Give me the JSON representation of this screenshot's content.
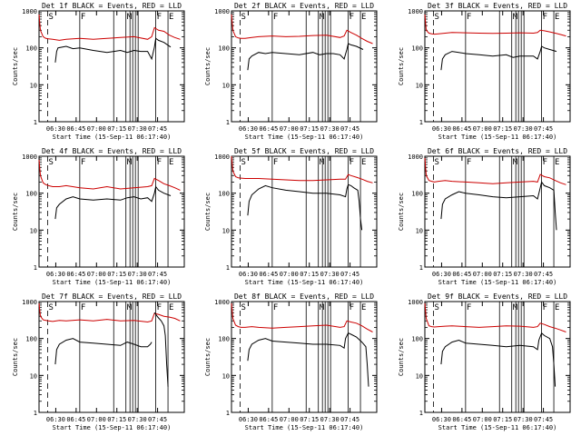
{
  "colors": {
    "events": "#000000",
    "lld": "#cc0000",
    "axis": "#000000",
    "background": "#ffffff"
  },
  "common": {
    "ylabel": "Counts/sec",
    "xlabel": "Start Time (15-Sep-11 06:17:40)",
    "x_tick_labels": [
      "06:30",
      "06:45",
      "07:00",
      "07:15",
      "07:30",
      "07:45"
    ],
    "y_tick_labels": [
      "1",
      "10",
      "100",
      "1000"
    ],
    "markers": [
      {
        "t": 6.35,
        "label": "S",
        "style": "dashed"
      },
      {
        "t": 30.0,
        "label": "F",
        "style": "solid"
      },
      {
        "t": 55.0,
        "label": "",
        "style": "solid"
      },
      {
        "t": 64.0,
        "label": "M",
        "style": "solid"
      },
      {
        "t": 67.0,
        "label": "",
        "style": "solid"
      },
      {
        "t": 69.0,
        "label": "",
        "style": "solid"
      },
      {
        "t": 71.0,
        "label": "",
        "style": "solid"
      },
      {
        "t": 73.0,
        "label": "",
        "style": "solid"
      },
      {
        "t": 86.0,
        "label": "F",
        "style": "solid"
      },
      {
        "t": 95.0,
        "label": "E",
        "style": "solid"
      }
    ]
  },
  "chart_data": [
    {
      "type": "line",
      "title": "Det 1f BLACK = Events, RED = LLD",
      "x_range_min_after_start": [
        0,
        107
      ],
      "y_log_range": [
        1,
        1000
      ],
      "series": [
        {
          "name": "Events",
          "color": "#000000",
          "x": [
            12,
            13,
            14,
            20,
            25,
            30,
            40,
            50,
            60,
            65,
            70,
            75,
            80,
            83,
            85,
            86,
            88,
            92,
            97
          ],
          "y": [
            40,
            80,
            100,
            110,
            95,
            100,
            85,
            75,
            85,
            75,
            85,
            80,
            80,
            50,
            105,
            180,
            160,
            140,
            105
          ]
        },
        {
          "name": "LLD",
          "color": "#cc0000",
          "x": [
            0,
            1,
            3,
            5,
            7,
            10,
            15,
            20,
            30,
            40,
            50,
            60,
            70,
            80,
            83,
            85,
            88,
            92,
            96,
            100,
            104
          ],
          "y": [
            800,
            300,
            200,
            180,
            175,
            170,
            160,
            170,
            180,
            170,
            180,
            190,
            200,
            170,
            200,
            350,
            300,
            280,
            220,
            190,
            170
          ]
        }
      ]
    },
    {
      "type": "line",
      "title": "Det 2f BLACK = Events, RED = LLD",
      "x_range_min_after_start": [
        0,
        107
      ],
      "y_log_range": [
        1,
        1000
      ],
      "series": [
        {
          "name": "Events",
          "color": "#000000",
          "x": [
            12,
            13,
            15,
            20,
            25,
            30,
            40,
            50,
            60,
            65,
            70,
            75,
            80,
            83,
            85,
            86,
            88,
            92,
            97
          ],
          "y": [
            25,
            50,
            60,
            75,
            70,
            75,
            70,
            65,
            75,
            65,
            70,
            70,
            65,
            50,
            90,
            130,
            120,
            110,
            90
          ]
        },
        {
          "name": "LLD",
          "color": "#cc0000",
          "x": [
            0,
            1,
            3,
            5,
            7,
            10,
            15,
            20,
            30,
            40,
            50,
            60,
            70,
            80,
            83,
            85,
            88,
            92,
            96,
            100,
            104
          ],
          "y": [
            800,
            300,
            200,
            185,
            180,
            180,
            190,
            200,
            210,
            200,
            205,
            215,
            220,
            190,
            210,
            300,
            260,
            220,
            180,
            150,
            130
          ]
        }
      ]
    },
    {
      "type": "line",
      "title": "Det 3f BLACK = Events, RED = LLD",
      "x_range_min_after_start": [
        0,
        107
      ],
      "y_log_range": [
        1,
        1000
      ],
      "series": [
        {
          "name": "Events",
          "color": "#000000",
          "x": [
            12,
            13,
            15,
            20,
            25,
            30,
            40,
            50,
            60,
            65,
            70,
            75,
            80,
            83,
            85,
            86,
            88,
            92,
            97
          ],
          "y": [
            25,
            50,
            65,
            80,
            75,
            70,
            65,
            60,
            65,
            55,
            60,
            60,
            60,
            50,
            80,
            110,
            100,
            90,
            80
          ]
        },
        {
          "name": "LLD",
          "color": "#cc0000",
          "x": [
            0,
            1,
            3,
            5,
            7,
            10,
            15,
            20,
            30,
            40,
            50,
            60,
            70,
            80,
            83,
            85,
            88,
            92,
            96,
            100,
            104
          ],
          "y": [
            800,
            300,
            250,
            240,
            235,
            240,
            250,
            260,
            255,
            250,
            245,
            250,
            255,
            250,
            260,
            300,
            290,
            270,
            250,
            230,
            210
          ]
        }
      ]
    },
    {
      "type": "line",
      "title": "Det 4f BLACK = Events, RED = LLD",
      "x_range_min_after_start": [
        0,
        107
      ],
      "y_log_range": [
        1,
        1000
      ],
      "series": [
        {
          "name": "Events",
          "color": "#000000",
          "x": [
            12,
            13,
            15,
            20,
            25,
            30,
            40,
            50,
            60,
            65,
            70,
            75,
            80,
            83,
            85,
            86,
            88,
            92,
            97
          ],
          "y": [
            20,
            40,
            50,
            70,
            80,
            70,
            65,
            70,
            65,
            75,
            80,
            70,
            75,
            60,
            100,
            150,
            120,
            100,
            85
          ]
        },
        {
          "name": "LLD",
          "color": "#cc0000",
          "x": [
            0,
            1,
            3,
            5,
            7,
            10,
            15,
            20,
            30,
            40,
            50,
            60,
            70,
            80,
            83,
            85,
            88,
            92,
            96,
            100,
            104
          ],
          "y": [
            800,
            300,
            190,
            170,
            160,
            150,
            150,
            160,
            140,
            130,
            150,
            130,
            140,
            150,
            160,
            250,
            220,
            180,
            160,
            140,
            120
          ]
        }
      ]
    },
    {
      "type": "line",
      "title": "Det 5f BLACK = Events, RED = LLD",
      "x_range_min_after_start": [
        0,
        107
      ],
      "y_log_range": [
        1,
        1000
      ],
      "series": [
        {
          "name": "Events",
          "color": "#000000",
          "x": [
            12,
            13,
            15,
            20,
            25,
            30,
            40,
            50,
            60,
            70,
            80,
            84,
            85,
            86,
            88,
            90,
            93,
            94,
            95,
            96
          ],
          "y": [
            25,
            60,
            90,
            130,
            160,
            140,
            120,
            110,
            100,
            100,
            90,
            80,
            130,
            170,
            160,
            140,
            120,
            60,
            20,
            10
          ]
        },
        {
          "name": "LLD",
          "color": "#cc0000",
          "x": [
            0,
            1,
            3,
            5,
            7,
            10,
            20,
            30,
            40,
            50,
            60,
            70,
            80,
            84,
            86,
            88,
            92,
            96,
            100,
            104
          ],
          "y": [
            1000,
            400,
            280,
            260,
            255,
            250,
            250,
            240,
            230,
            220,
            220,
            230,
            240,
            240,
            320,
            300,
            270,
            240,
            210,
            190
          ]
        }
      ]
    },
    {
      "type": "line",
      "title": "Det 6f BLACK = Events, RED = LLD",
      "x_range_min_after_start": [
        0,
        107
      ],
      "y_log_range": [
        1,
        1000
      ],
      "series": [
        {
          "name": "Events",
          "color": "#000000",
          "x": [
            12,
            13,
            15,
            20,
            25,
            30,
            40,
            50,
            60,
            70,
            80,
            83,
            85,
            86,
            88,
            92,
            95,
            96,
            97
          ],
          "y": [
            20,
            50,
            70,
            90,
            110,
            100,
            90,
            80,
            75,
            80,
            85,
            70,
            140,
            200,
            160,
            140,
            120,
            30,
            10
          ]
        },
        {
          "name": "LLD",
          "color": "#cc0000",
          "x": [
            0,
            1,
            3,
            5,
            7,
            10,
            15,
            20,
            30,
            40,
            50,
            60,
            70,
            80,
            83,
            85,
            88,
            92,
            96,
            100,
            104
          ],
          "y": [
            900,
            300,
            220,
            210,
            200,
            210,
            220,
            210,
            200,
            190,
            180,
            190,
            200,
            210,
            200,
            320,
            280,
            260,
            220,
            190,
            170
          ]
        }
      ]
    },
    {
      "type": "line",
      "title": "Det 7f BLACK = Events, RED = LLD",
      "x_range_min_after_start": [
        0,
        107
      ],
      "y_log_range": [
        1,
        1000
      ],
      "series": [
        {
          "name": "Events",
          "color": "#000000",
          "x": [
            12,
            13,
            15,
            20,
            25,
            30,
            40,
            50,
            60,
            65,
            70,
            75,
            80,
            82,
            83
          ],
          "y": [
            20,
            50,
            70,
            90,
            100,
            80,
            75,
            70,
            65,
            80,
            70,
            60,
            60,
            70,
            80
          ]
        },
        {
          "name": "LLD",
          "color": "#cc0000",
          "x": [
            0,
            1,
            3,
            5,
            7,
            10,
            15,
            20,
            30,
            40,
            50,
            60,
            70,
            80,
            83,
            85,
            88,
            92,
            96,
            100,
            104
          ],
          "y": [
            900,
            400,
            320,
            310,
            300,
            290,
            310,
            300,
            320,
            300,
            330,
            300,
            310,
            280,
            300,
            480,
            450,
            400,
            380,
            350,
            300
          ]
        },
        {
          "name": "Events (tail)",
          "color": "#000000",
          "x": [
            85,
            86,
            87,
            88,
            90,
            92,
            93,
            94,
            95
          ],
          "y": [
            500,
            450,
            400,
            360,
            300,
            220,
            120,
            20,
            5
          ]
        }
      ]
    },
    {
      "type": "line",
      "title": "Det 8f BLACK = Events, RED = LLD",
      "x_range_min_after_start": [
        0,
        107
      ],
      "y_log_range": [
        1,
        1000
      ],
      "series": [
        {
          "name": "Events",
          "color": "#000000",
          "x": [
            12,
            13,
            15,
            20,
            25,
            30,
            40,
            50,
            60,
            70,
            80,
            83,
            84,
            86,
            88,
            92,
            96,
            99,
            100,
            101
          ],
          "y": [
            25,
            50,
            70,
            90,
            100,
            85,
            80,
            75,
            70,
            70,
            65,
            55,
            100,
            140,
            130,
            110,
            80,
            60,
            20,
            5
          ]
        },
        {
          "name": "LLD",
          "color": "#cc0000",
          "x": [
            0,
            1,
            3,
            5,
            7,
            10,
            15,
            20,
            30,
            40,
            50,
            60,
            70,
            80,
            83,
            85,
            88,
            92,
            96,
            100,
            104
          ],
          "y": [
            900,
            350,
            230,
            210,
            200,
            200,
            210,
            200,
            190,
            200,
            210,
            220,
            230,
            200,
            210,
            300,
            280,
            260,
            220,
            180,
            150
          ]
        }
      ]
    },
    {
      "type": "line",
      "title": "Det 9f BLACK = Events, RED = LLD",
      "x_range_min_after_start": [
        0,
        107
      ],
      "y_log_range": [
        1,
        1000
      ],
      "series": [
        {
          "name": "Events",
          "color": "#000000",
          "x": [
            12,
            13,
            15,
            20,
            25,
            30,
            40,
            50,
            60,
            70,
            80,
            83,
            84,
            86,
            88,
            92,
            94,
            95,
            96
          ],
          "y": [
            20,
            45,
            60,
            80,
            90,
            75,
            70,
            65,
            60,
            65,
            60,
            50,
            90,
            140,
            120,
            100,
            60,
            20,
            5
          ]
        },
        {
          "name": "LLD",
          "color": "#cc0000",
          "x": [
            0,
            1,
            3,
            5,
            7,
            10,
            15,
            20,
            30,
            40,
            50,
            60,
            70,
            80,
            83,
            85,
            88,
            92,
            96,
            100,
            104
          ],
          "y": [
            900,
            350,
            220,
            210,
            205,
            210,
            215,
            220,
            210,
            200,
            210,
            220,
            215,
            200,
            210,
            260,
            240,
            210,
            190,
            170,
            150
          ]
        }
      ]
    }
  ]
}
